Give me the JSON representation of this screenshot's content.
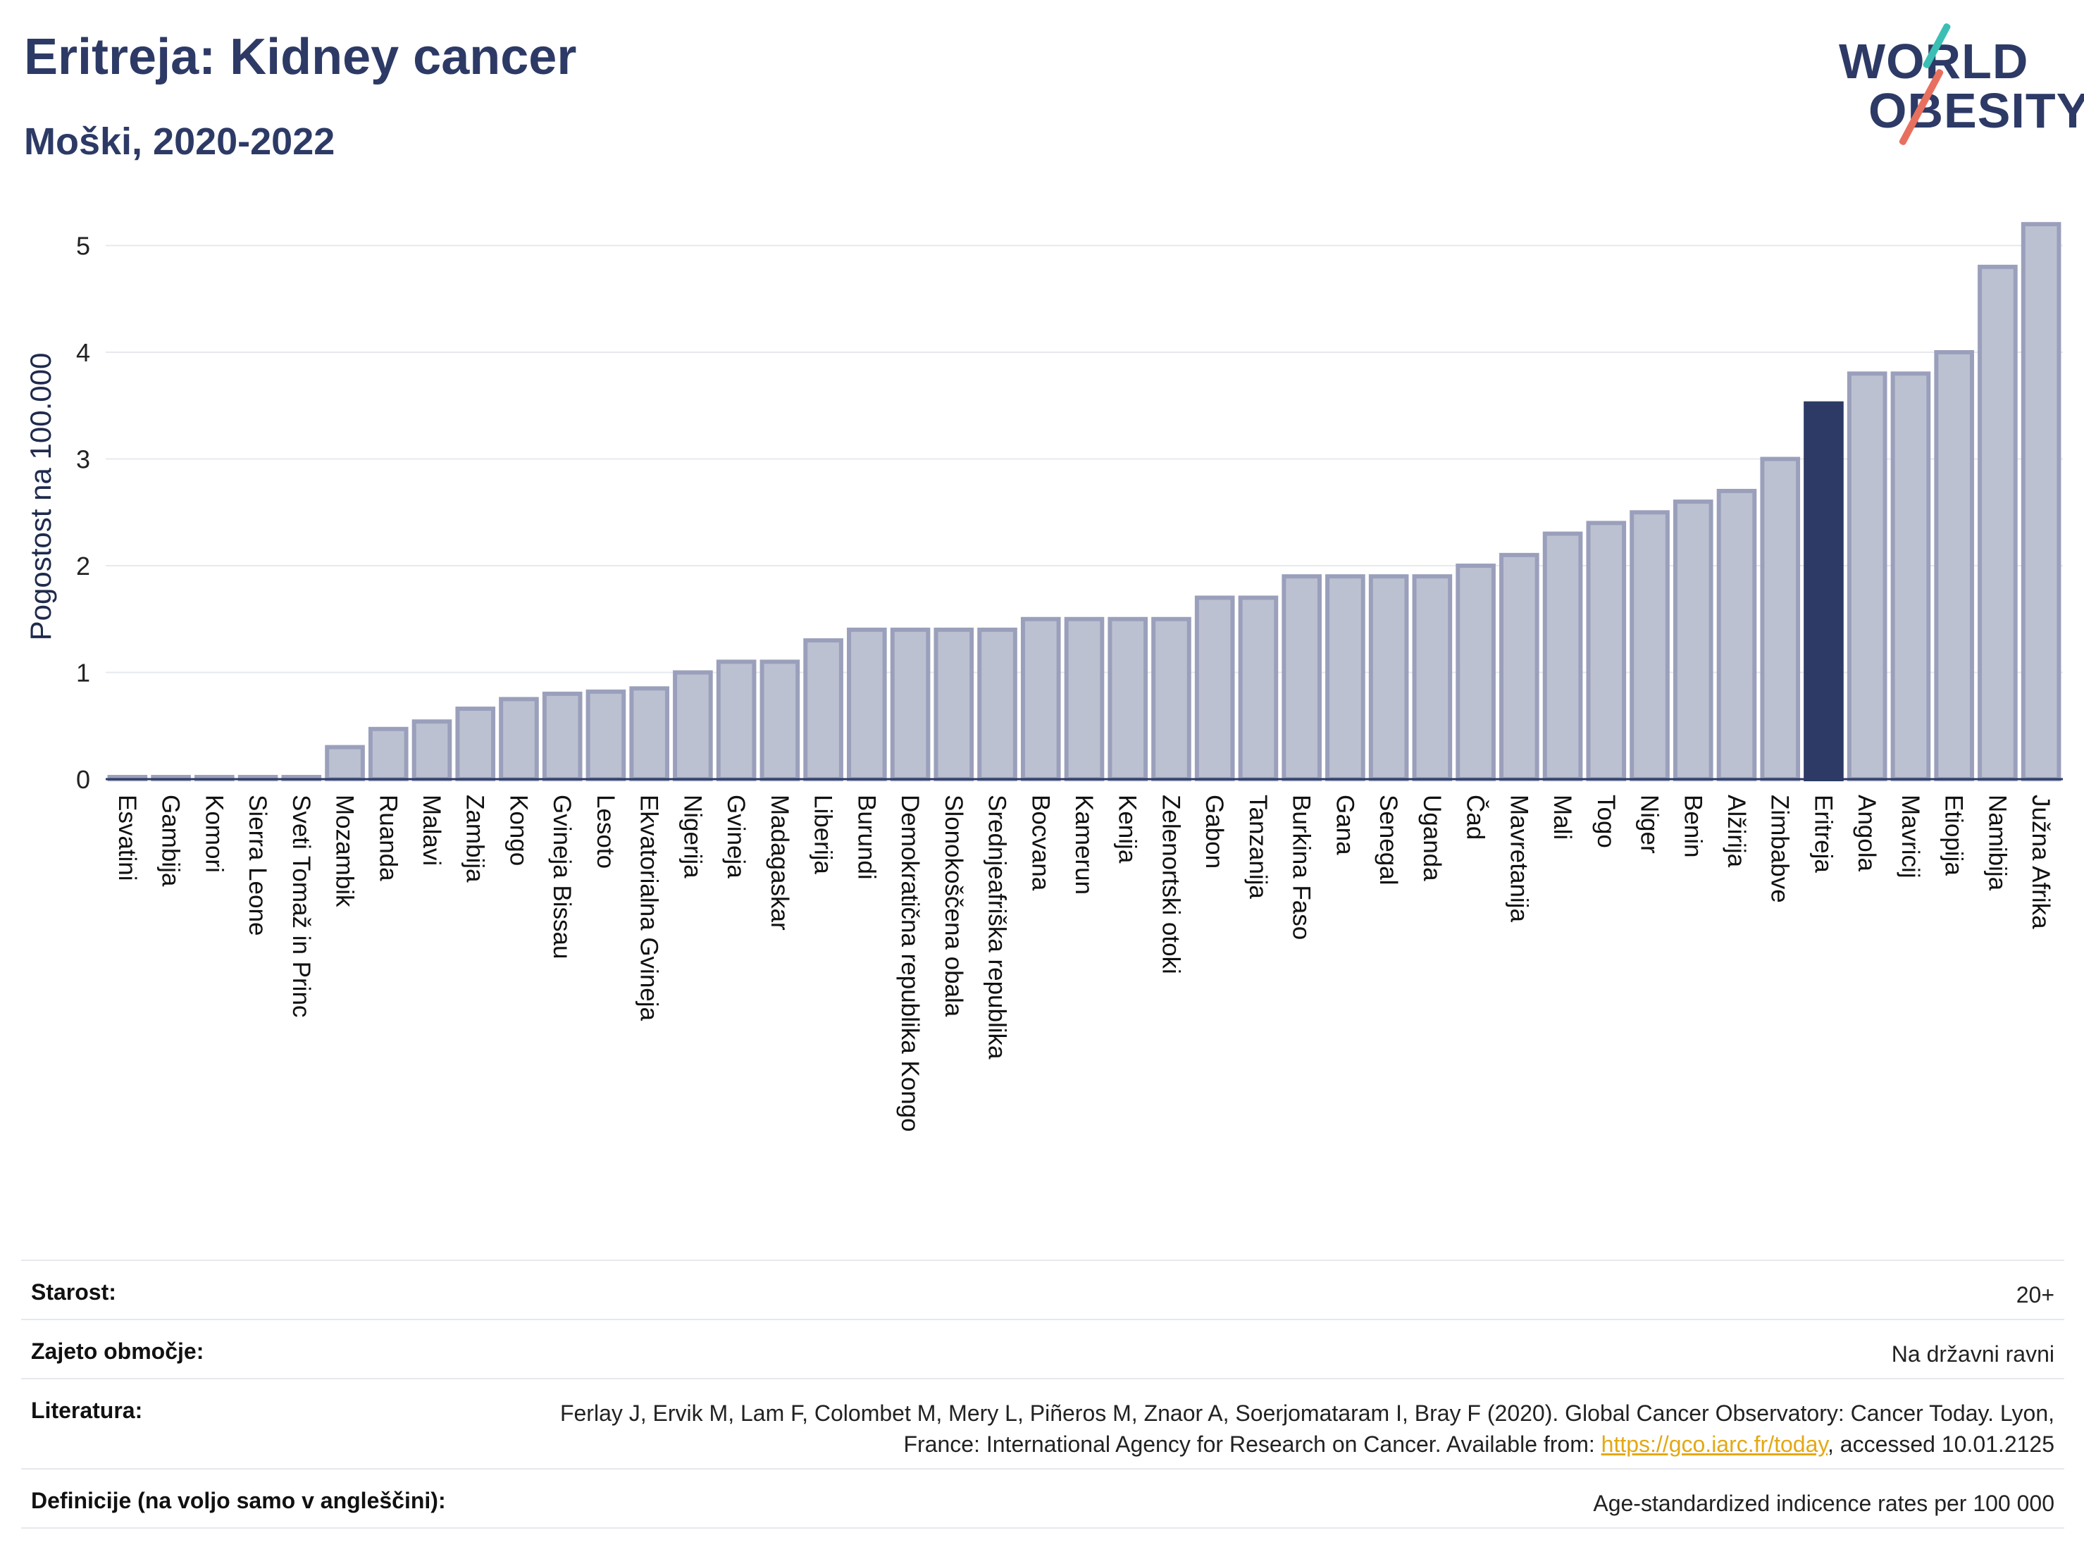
{
  "header": {
    "title": "Eritreja: Kidney cancer",
    "subtitle": "Moški, 2020-2022"
  },
  "logo": {
    "line1": "WORLD",
    "line2": "OBESITY",
    "colors": {
      "text": "#2d3a66",
      "teal": "#3bbfb4",
      "coral": "#e8705f"
    }
  },
  "chart_data": {
    "type": "bar",
    "ylabel": "Pogostost na 100.000",
    "ylim": [
      0,
      5.5
    ],
    "yticks": [
      0,
      1,
      2,
      3,
      4,
      5
    ],
    "grid": true,
    "highlight": "Eritreja",
    "colors": {
      "bar": "#bcc1d1",
      "bar_edge": "#9aa0bb",
      "highlight": "#2d3a66"
    },
    "categories": [
      "Esvatini",
      "Gambija",
      "Komori",
      "Sierra Leone",
      "Sveti Tomaž in Princ",
      "Mozambik",
      "Ruanda",
      "Malavi",
      "Zambija",
      "Kongo",
      "Gvineja Bissau",
      "Lesoto",
      "Ekvatorialna Gvineja",
      "Nigerija",
      "Gvineja",
      "Madagaskar",
      "Liberija",
      "Burundi",
      "Demokratična republika Kongo",
      "Slonokoščena obala",
      "Srednjeafriška republika",
      "Bocvana",
      "Kamerun",
      "Kenija",
      "Zelenortski otoki",
      "Gabon",
      "Tanzanija",
      "Burkina Faso",
      "Gana",
      "Senegal",
      "Uganda",
      "Čad",
      "Mavretanija",
      "Mali",
      "Togo",
      "Niger",
      "Benin",
      "Alžirija",
      "Zimbabve",
      "Eritreja",
      "Angola",
      "Mavricij",
      "Etiopija",
      "Namibija",
      "Južna Afrika"
    ],
    "values": [
      0.02,
      0.02,
      0.02,
      0.02,
      0.02,
      0.3,
      0.47,
      0.54,
      0.66,
      0.75,
      0.8,
      0.82,
      0.85,
      1.0,
      1.1,
      1.1,
      1.3,
      1.4,
      1.4,
      1.4,
      1.4,
      1.5,
      1.5,
      1.5,
      1.5,
      1.7,
      1.7,
      1.9,
      1.9,
      1.9,
      1.9,
      2.0,
      2.1,
      2.3,
      2.4,
      2.5,
      2.6,
      2.7,
      3.0,
      3.52,
      3.8,
      3.8,
      4.0,
      4.8,
      5.2
    ]
  },
  "info": {
    "age_label": "Starost:",
    "age_value": "20+",
    "coverage_label": "Zajeto območje:",
    "coverage_value": "Na državni ravni",
    "references_label": "Literatura:",
    "references_text": "Ferlay J, Ervik M, Lam F, Colombet M, Mery L, Piñeros M, Znaor A, Soerjomataram I, Bray F (2020). Global Cancer Observatory: Cancer Today. Lyon, France: International Agency for Research on Cancer. Available from: ",
    "references_link": "https://gco.iarc.fr/today",
    "references_suffix": ", accessed 10.01.2125",
    "definitions_label": "Definicije (na voljo samo v angleščini):",
    "definitions_value": "Age-standardized indicence rates per 100 000"
  }
}
